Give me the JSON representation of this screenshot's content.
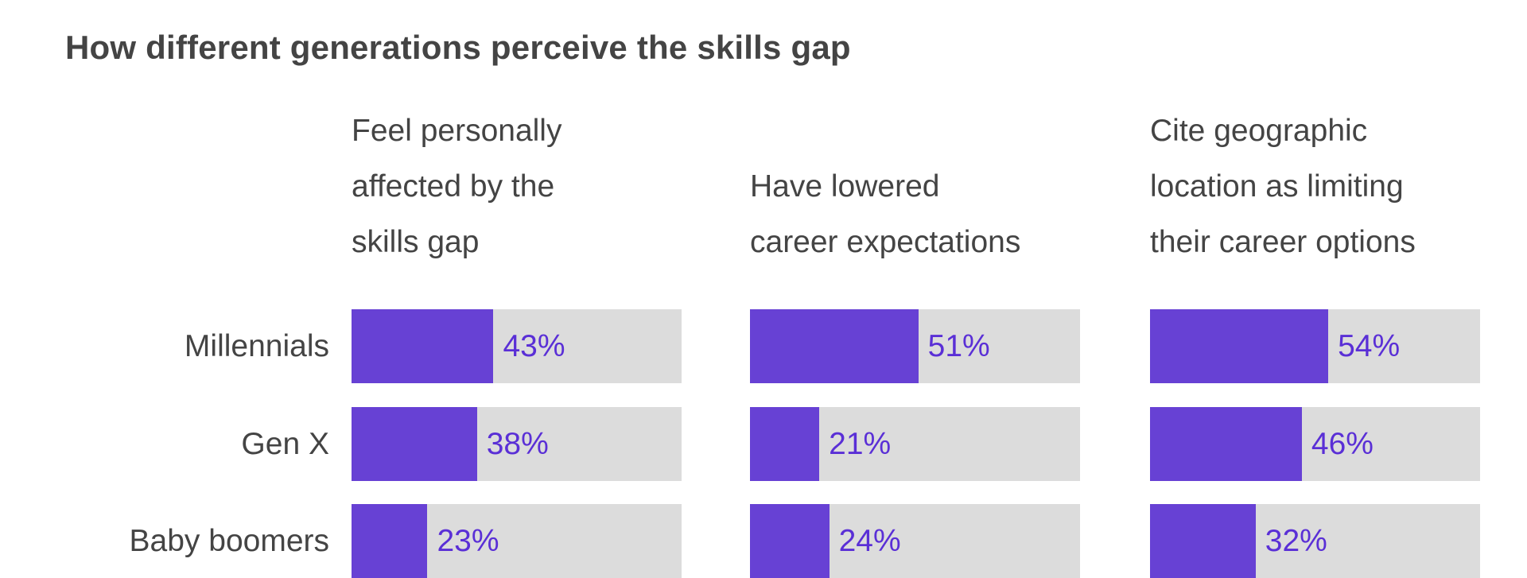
{
  "chart_data": {
    "type": "bar",
    "title": "How different generations perceive the skills gap",
    "categories": [
      "Millennials",
      "Gen X",
      "Baby boomers"
    ],
    "series": [
      {
        "name": "Feel personally affected by the skills gap",
        "values": [
          43,
          38,
          23
        ]
      },
      {
        "name": "Have lowered career expectations",
        "values": [
          51,
          21,
          24
        ]
      },
      {
        "name": "Cite geographic location as limiting their career options",
        "values": [
          54,
          46,
          32
        ]
      }
    ],
    "header_lines": [
      [
        "Feel personally",
        "affected by the",
        "skills gap"
      ],
      [
        "Have lowered",
        "career expectations"
      ],
      [
        "Cite geographic",
        "location as limiting",
        "their career options"
      ]
    ],
    "value_labels": [
      [
        "43%",
        "38%",
        "23%"
      ],
      [
        "51%",
        "21%",
        "24%"
      ],
      [
        "54%",
        "46%",
        "32%"
      ]
    ],
    "unit": "%",
    "xlim": [
      0,
      100
    ],
    "colors": {
      "fill": "#6741d4",
      "track": "#dcdcdc",
      "value_text": "#5a2fd6",
      "text": "#444444"
    }
  }
}
